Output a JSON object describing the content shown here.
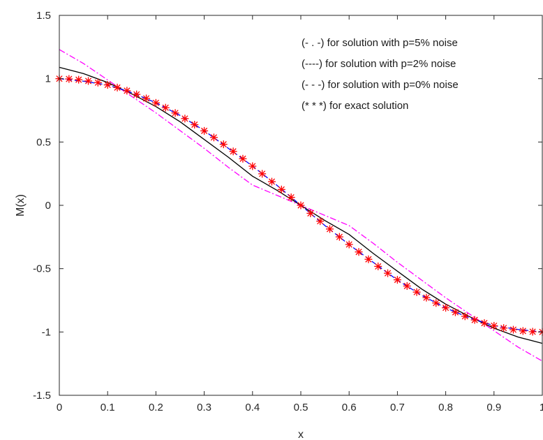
{
  "chart_data": {
    "type": "line",
    "title": "",
    "xlabel": "x",
    "ylabel": "M(x)",
    "xlim": [
      0,
      1
    ],
    "ylim": [
      -1.5,
      1.5
    ],
    "xticks": [
      "0",
      "0.1",
      "0.2",
      "0.3",
      "0.4",
      "0.5",
      "0.6",
      "0.7",
      "0.8",
      "0.9",
      "1"
    ],
    "yticks": [
      "1.5",
      "1",
      "0.5",
      "0",
      "-0.5",
      "-1",
      "-1.5"
    ],
    "grid": false,
    "box": true,
    "legend_position": "top-right",
    "legend": [
      "(- . -) for solution with p=5% noise",
      "(----) for solution with p=2% noise",
      "(- - -) for solution with p=0% noise",
      "(* * *) for exact solution"
    ],
    "colors": {
      "p5": "#ff00ff",
      "p2": "#000000",
      "p0": "#0000ff",
      "exact": "#ff0000"
    },
    "x": [
      0,
      0.05,
      0.1,
      0.15,
      0.2,
      0.25,
      0.3,
      0.35,
      0.4,
      0.45,
      0.5,
      0.55,
      0.6,
      0.65,
      0.7,
      0.75,
      0.8,
      0.85,
      0.9,
      0.95,
      1
    ],
    "series": [
      {
        "name": "(- . -) for solution with p=5% noise",
        "style": "dash-dot",
        "color": "#ff00ff",
        "values": [
          1.23,
          1.12,
          0.99,
          0.86,
          0.73,
          0.59,
          0.45,
          0.3,
          0.16,
          0.08,
          0,
          -0.08,
          -0.16,
          -0.3,
          -0.45,
          -0.59,
          -0.73,
          -0.86,
          -0.99,
          -1.12,
          -1.23
        ]
      },
      {
        "name": "(----) for solution with p=2% noise",
        "style": "solid",
        "color": "#000000",
        "values": [
          1.09,
          1.04,
          0.97,
          0.88,
          0.78,
          0.66,
          0.52,
          0.38,
          0.23,
          0.12,
          0,
          -0.12,
          -0.23,
          -0.38,
          -0.52,
          -0.66,
          -0.78,
          -0.88,
          -0.97,
          -1.04,
          -1.09
        ]
      },
      {
        "name": "(- - -) for solution with p=0% noise",
        "style": "dashed",
        "color": "#0000ff",
        "values": [
          1,
          0.98,
          0.95,
          0.89,
          0.81,
          0.71,
          0.59,
          0.45,
          0.31,
          0.16,
          0,
          -0.16,
          -0.31,
          -0.45,
          -0.59,
          -0.71,
          -0.81,
          -0.89,
          -0.95,
          -0.98,
          -1
        ]
      }
    ],
    "exact": {
      "name": "(* * *) for exact solution",
      "color": "#ff0000",
      "x": [
        0,
        0.02,
        0.04,
        0.06,
        0.08,
        0.1,
        0.12,
        0.14,
        0.16,
        0.18,
        0.2,
        0.22,
        0.24,
        0.26,
        0.28,
        0.3,
        0.32,
        0.34,
        0.36,
        0.38,
        0.4,
        0.42,
        0.44,
        0.46,
        0.48,
        0.5,
        0.52,
        0.54,
        0.56,
        0.58,
        0.6,
        0.62,
        0.64,
        0.66,
        0.68,
        0.7,
        0.72,
        0.74,
        0.76,
        0.78,
        0.8,
        0.82,
        0.84,
        0.86,
        0.88,
        0.9,
        0.92,
        0.94,
        0.96,
        0.98,
        1
      ],
      "values": [
        1,
        0.998,
        0.992,
        0.982,
        0.969,
        0.951,
        0.93,
        0.905,
        0.876,
        0.844,
        0.809,
        0.771,
        0.729,
        0.685,
        0.637,
        0.588,
        0.536,
        0.482,
        0.426,
        0.368,
        0.309,
        0.249,
        0.187,
        0.125,
        0.063,
        0,
        -0.063,
        -0.125,
        -0.187,
        -0.249,
        -0.309,
        -0.368,
        -0.426,
        -0.482,
        -0.536,
        -0.588,
        -0.637,
        -0.685,
        -0.729,
        -0.771,
        -0.809,
        -0.844,
        -0.876,
        -0.905,
        -0.93,
        -0.951,
        -0.969,
        -0.982,
        -0.992,
        -0.998,
        -1
      ]
    }
  }
}
